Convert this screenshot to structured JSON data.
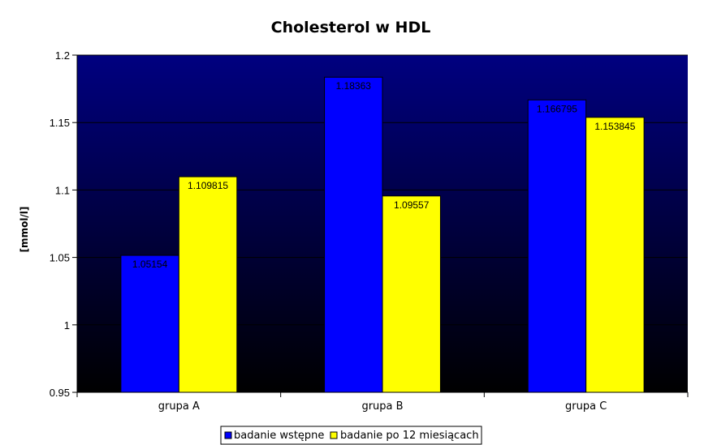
{
  "chart_data": {
    "type": "bar",
    "title": "Cholesterol w HDL",
    "xlabel": "",
    "ylabel": "[mmol/l]",
    "ylim": [
      0.95,
      1.2
    ],
    "yticks": [
      "0.95",
      "1",
      "1.05",
      "1.1",
      "1.15",
      "1.2"
    ],
    "categories": [
      "grupa A",
      "grupa B",
      "grupa C"
    ],
    "series": [
      {
        "name": "badanie wstępne",
        "color": "#0000ff",
        "values": [
          1.05154,
          1.18363,
          1.166795
        ],
        "labels": [
          "1.05154",
          "1.18363",
          "1.166795"
        ]
      },
      {
        "name": "badanie po 12 miesiącach",
        "color": "#ffff00",
        "values": [
          1.109815,
          1.09557,
          1.153845
        ],
        "labels": [
          "1.109815",
          "1.09557",
          "1.153845"
        ]
      }
    ],
    "grid": true,
    "legend": "bottom",
    "plot_background": [
      "#000080",
      "#000000"
    ]
  }
}
